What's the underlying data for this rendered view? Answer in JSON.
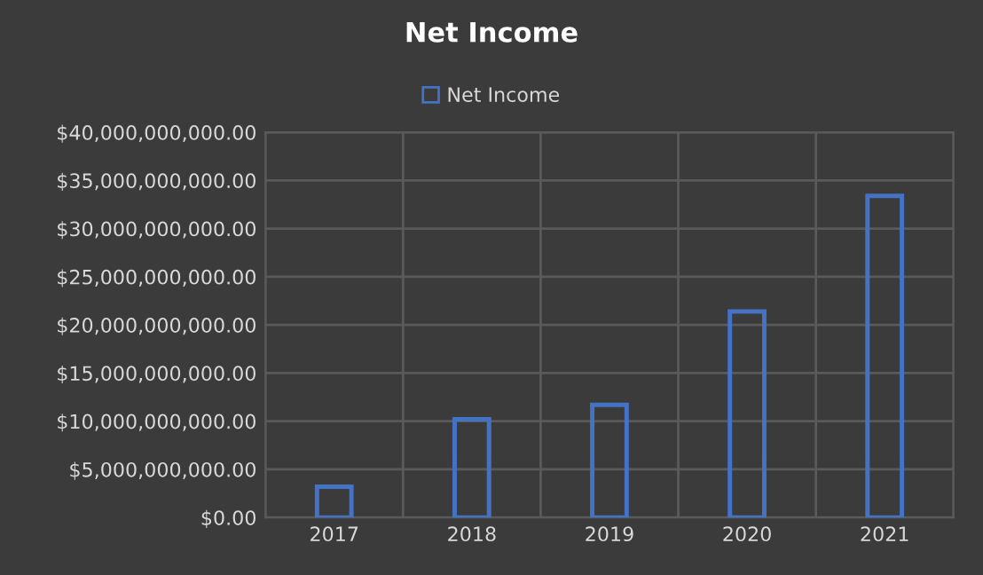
{
  "chart_data": {
    "type": "bar",
    "title": "Net Income",
    "categories": [
      "2017",
      "2018",
      "2019",
      "2020",
      "2021"
    ],
    "series": [
      {
        "name": "Net Income",
        "color": "#4472c4",
        "values": [
          3200000000,
          10200000000,
          11700000000,
          21400000000,
          33400000000
        ]
      }
    ],
    "ylim": [
      0,
      40000000000
    ],
    "yticks": [
      {
        "value": 0,
        "label": "$0.00"
      },
      {
        "value": 5000000000,
        "label": "$5,000,000,000.00"
      },
      {
        "value": 10000000000,
        "label": "$10,000,000,000.00"
      },
      {
        "value": 15000000000,
        "label": "$15,000,000,000.00"
      },
      {
        "value": 20000000000,
        "label": "$20,000,000,000.00"
      },
      {
        "value": 25000000000,
        "label": "$25,000,000,000.00"
      },
      {
        "value": 30000000000,
        "label": "$30,000,000,000.00"
      },
      {
        "value": 35000000000,
        "label": "$35,000,000,000.00"
      },
      {
        "value": 40000000000,
        "label": "$40,000,000,000.00"
      }
    ],
    "grid": true,
    "legend": "top"
  }
}
